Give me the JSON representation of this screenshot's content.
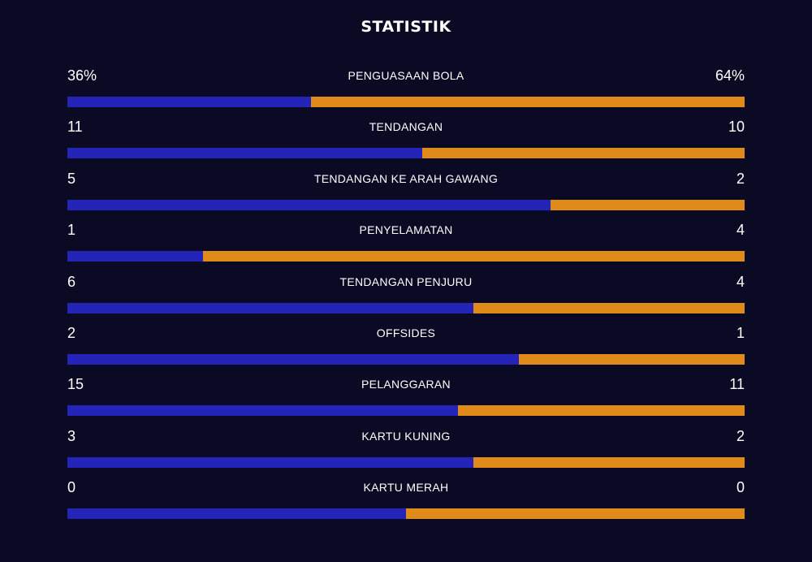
{
  "title": "STATISTIK",
  "colors": {
    "background": "#0a0a24",
    "home": "#2424b8",
    "away": "#e08a1a"
  },
  "stats": [
    {
      "label": "PENGUASAAN BOLA",
      "home": "36%",
      "away": "64%",
      "home_share": 0.36
    },
    {
      "label": "TENDANGAN",
      "home": "11",
      "away": "10",
      "home_share": 0.524
    },
    {
      "label": "TENDANGAN KE ARAH GAWANG",
      "home": "5",
      "away": "2",
      "home_share": 0.714
    },
    {
      "label": "PENYELAMATAN",
      "home": "1",
      "away": "4",
      "home_share": 0.2
    },
    {
      "label": "TENDANGAN PENJURU",
      "home": "6",
      "away": "4",
      "home_share": 0.6
    },
    {
      "label": "OFFSIDES",
      "home": "2",
      "away": "1",
      "home_share": 0.667
    },
    {
      "label": "PELANGGARAN",
      "home": "15",
      "away": "11",
      "home_share": 0.577
    },
    {
      "label": "KARTU KUNING",
      "home": "3",
      "away": "2",
      "home_share": 0.6
    },
    {
      "label": "KARTU MERAH",
      "home": "0",
      "away": "0",
      "home_share": 0.5
    }
  ]
}
